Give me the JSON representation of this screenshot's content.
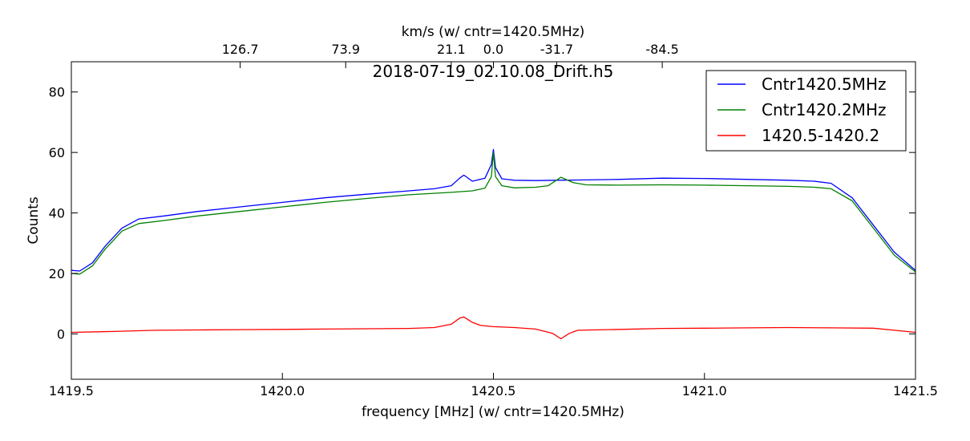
{
  "chart_data": {
    "type": "line",
    "title": "2018-07-19_02.10.08_Drift.h5",
    "xlabel": "frequency [MHz] (w/ cntr=1420.5MHz)",
    "ylabel": "Counts",
    "top_xlabel": "km/s (w/ cntr=1420.5MHz)",
    "xlim": [
      1419.5,
      1421.5
    ],
    "ylim": [
      -15,
      90
    ],
    "x_ticks": [
      1419.5,
      1420.0,
      1420.5,
      1421.0,
      1421.5
    ],
    "x_tick_labels": [
      "1419.5",
      "1420.0",
      "1420.5",
      "1421.0",
      "1421.5"
    ],
    "y_ticks": [
      0,
      20,
      40,
      60,
      80
    ],
    "y_tick_labels": [
      "0",
      "20",
      "40",
      "60",
      "80"
    ],
    "top_ticks": [
      {
        "x": 1420.9,
        "label": "-84.5"
      },
      {
        "x": 1420.65,
        "label": "-31.7"
      },
      {
        "x": 1420.5,
        "label": "0.0"
      },
      {
        "x": 1420.4,
        "label": "21.1"
      },
      {
        "x": 1420.15,
        "label": "73.9"
      },
      {
        "x": 1419.9,
        "label": "126.7"
      }
    ],
    "grid": false,
    "legend_position": "top-right",
    "series": [
      {
        "name": "Cntr1420.5MHz",
        "color": "#0000ff",
        "x": [
          1419.5,
          1419.52,
          1419.55,
          1419.58,
          1419.62,
          1419.66,
          1419.72,
          1419.8,
          1419.9,
          1420.0,
          1420.1,
          1420.2,
          1420.3,
          1420.36,
          1420.4,
          1420.42,
          1420.43,
          1420.45,
          1420.48,
          1420.495,
          1420.5,
          1420.505,
          1420.52,
          1420.55,
          1420.6,
          1420.65,
          1420.7,
          1420.8,
          1420.9,
          1421.0,
          1421.1,
          1421.2,
          1421.26,
          1421.3,
          1421.35,
          1421.4,
          1421.45,
          1421.5
        ],
        "y": [
          21,
          20.8,
          23.5,
          29,
          35,
          38,
          39,
          40.5,
          42,
          43.5,
          45,
          46.2,
          47.3,
          48,
          49,
          51.5,
          52.5,
          50.5,
          51.5,
          56,
          61,
          55,
          51.3,
          50.8,
          50.7,
          50.8,
          50.9,
          51.1,
          51.5,
          51.4,
          51.1,
          50.8,
          50.5,
          49.8,
          45,
          36,
          27,
          21
        ]
      },
      {
        "name": "Cntr1420.2MHz",
        "color": "#008000",
        "x": [
          1419.5,
          1419.52,
          1419.55,
          1419.58,
          1419.62,
          1419.66,
          1419.72,
          1419.8,
          1419.9,
          1420.0,
          1420.1,
          1420.2,
          1420.3,
          1420.4,
          1420.45,
          1420.48,
          1420.495,
          1420.5,
          1420.505,
          1420.52,
          1420.55,
          1420.6,
          1420.63,
          1420.66,
          1420.69,
          1420.72,
          1420.8,
          1420.9,
          1421.0,
          1421.1,
          1421.2,
          1421.26,
          1421.3,
          1421.35,
          1421.4,
          1421.45,
          1421.5
        ],
        "y": [
          20,
          19.8,
          22.5,
          28,
          34,
          36.5,
          37.5,
          39,
          40.5,
          42,
          43.5,
          44.8,
          46,
          46.8,
          47.3,
          48.2,
          52,
          60,
          52,
          49,
          48.3,
          48.5,
          49,
          51.8,
          50,
          49.3,
          49.2,
          49.3,
          49.2,
          49,
          48.8,
          48.5,
          48,
          44,
          35,
          26,
          20.5
        ]
      },
      {
        "name": "1420.5-1420.2",
        "color": "#ff0000",
        "x": [
          1419.5,
          1419.6,
          1419.7,
          1419.8,
          1419.9,
          1420.0,
          1420.1,
          1420.2,
          1420.3,
          1420.36,
          1420.4,
          1420.42,
          1420.43,
          1420.45,
          1420.47,
          1420.5,
          1420.55,
          1420.6,
          1420.64,
          1420.66,
          1420.68,
          1420.7,
          1420.8,
          1420.9,
          1421.0,
          1421.1,
          1421.2,
          1421.3,
          1421.4,
          1421.45,
          1421.5
        ],
        "y": [
          0.5,
          0.8,
          1.2,
          1.3,
          1.4,
          1.5,
          1.6,
          1.7,
          1.8,
          2.1,
          3.2,
          5.2,
          5.6,
          3.8,
          2.8,
          2.4,
          2.1,
          1.6,
          0.2,
          -1.6,
          0.2,
          1.2,
          1.5,
          1.8,
          1.9,
          2.0,
          2.1,
          2.0,
          1.9,
          1.2,
          0.5
        ]
      }
    ]
  }
}
